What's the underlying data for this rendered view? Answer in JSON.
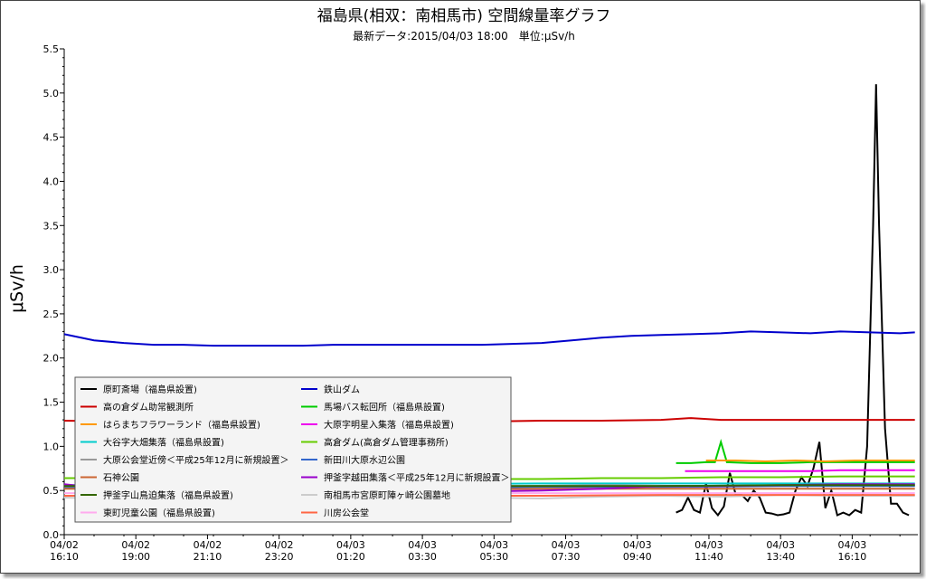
{
  "chart_data": {
    "type": "line",
    "title": "福島県(相双：南相馬市) 空間線量率グラフ",
    "subtitle": "最新データ:2015/04/03 18:00　単位:μSv/h",
    "ylabel": "μSv/h",
    "xlabel": "",
    "ylim": [
      0,
      5.5
    ],
    "yticks": [
      "0.0",
      "0.5",
      "1.0",
      "1.5",
      "2.0",
      "2.5",
      "3.0",
      "3.5",
      "4.0",
      "4.5",
      "5.0",
      "5.5"
    ],
    "xticks": [
      {
        "date": "04/02",
        "time": "16:10"
      },
      {
        "date": "04/02",
        "time": "19:00"
      },
      {
        "date": "04/02",
        "time": "21:10"
      },
      {
        "date": "04/02",
        "time": "23:20"
      },
      {
        "date": "04/03",
        "time": "01:20"
      },
      {
        "date": "04/03",
        "time": "03:30"
      },
      {
        "date": "04/03",
        "time": "05:30"
      },
      {
        "date": "04/03",
        "time": "07:30"
      },
      {
        "date": "04/03",
        "time": "09:40"
      },
      {
        "date": "04/03",
        "time": "11:40"
      },
      {
        "date": "04/03",
        "time": "13:40"
      },
      {
        "date": "04/03",
        "time": "16:10"
      }
    ],
    "grid": false,
    "legend_position": "bottom-left",
    "series": [
      {
        "name": "原町斎場（福島県設置)",
        "color": "#000000",
        "values": [
          [
            20.5,
            0.25
          ],
          [
            20.7,
            0.28
          ],
          [
            20.9,
            0.42
          ],
          [
            21.1,
            0.28
          ],
          [
            21.3,
            0.25
          ],
          [
            21.5,
            0.58
          ],
          [
            21.7,
            0.3
          ],
          [
            21.9,
            0.22
          ],
          [
            22.1,
            0.32
          ],
          [
            22.3,
            0.7
          ],
          [
            22.5,
            0.45
          ],
          [
            22.7,
            0.45
          ],
          [
            22.9,
            0.38
          ],
          [
            23.1,
            0.5
          ],
          [
            23.3,
            0.42
          ],
          [
            23.5,
            0.25
          ],
          [
            23.7,
            0.24
          ],
          [
            23.9,
            0.22
          ],
          [
            24.1,
            0.23
          ],
          [
            24.3,
            0.25
          ],
          [
            24.5,
            0.5
          ],
          [
            24.7,
            0.65
          ],
          [
            24.9,
            0.55
          ],
          [
            25.1,
            0.75
          ],
          [
            25.3,
            1.05
          ],
          [
            25.5,
            0.3
          ],
          [
            25.7,
            0.5
          ],
          [
            25.9,
            0.22
          ],
          [
            26.1,
            0.25
          ],
          [
            26.3,
            0.22
          ],
          [
            26.5,
            0.28
          ],
          [
            26.7,
            0.25
          ],
          [
            26.9,
            1.0
          ],
          [
            27.1,
            3.5
          ],
          [
            27.2,
            5.1
          ],
          [
            27.3,
            3.5
          ],
          [
            27.5,
            1.2
          ],
          [
            27.7,
            0.35
          ],
          [
            27.9,
            0.35
          ],
          [
            28.1,
            0.25
          ],
          [
            28.3,
            0.22
          ]
        ]
      },
      {
        "name": "鉄山ダム",
        "color": "#0000cc",
        "values": [
          [
            0,
            2.27
          ],
          [
            1,
            2.2
          ],
          [
            2,
            2.17
          ],
          [
            3,
            2.15
          ],
          [
            4,
            2.15
          ],
          [
            5,
            2.14
          ],
          [
            6,
            2.14
          ],
          [
            7,
            2.14
          ],
          [
            8,
            2.14
          ],
          [
            9,
            2.15
          ],
          [
            10,
            2.15
          ],
          [
            11,
            2.15
          ],
          [
            12,
            2.15
          ],
          [
            13,
            2.15
          ],
          [
            14,
            2.15
          ],
          [
            15,
            2.16
          ],
          [
            16,
            2.17
          ],
          [
            17,
            2.2
          ],
          [
            18,
            2.23
          ],
          [
            19,
            2.25
          ],
          [
            20,
            2.26
          ],
          [
            21,
            2.27
          ],
          [
            22,
            2.28
          ],
          [
            23,
            2.3
          ],
          [
            24,
            2.29
          ],
          [
            25,
            2.28
          ],
          [
            26,
            2.3
          ],
          [
            27,
            2.29
          ],
          [
            28,
            2.28
          ],
          [
            28.5,
            2.29
          ]
        ]
      },
      {
        "name": "高の倉ダム助常観測所",
        "color": "#cc0000",
        "values": [
          [
            0,
            1.29
          ],
          [
            2,
            1.28
          ],
          [
            4,
            1.28
          ],
          [
            6,
            1.28
          ],
          [
            8,
            1.28
          ],
          [
            10,
            1.28
          ],
          [
            12,
            1.28
          ],
          [
            14,
            1.28
          ],
          [
            16,
            1.29
          ],
          [
            18,
            1.29
          ],
          [
            20,
            1.3
          ],
          [
            21,
            1.32
          ],
          [
            22,
            1.3
          ],
          [
            24,
            1.3
          ],
          [
            26,
            1.3
          ],
          [
            28,
            1.3
          ],
          [
            28.5,
            1.3
          ]
        ]
      },
      {
        "name": "馬場バス転回所（福島県設置)",
        "color": "#00cc00",
        "values": [
          [
            20.5,
            0.81
          ],
          [
            21,
            0.81
          ],
          [
            21.5,
            0.82
          ],
          [
            21.8,
            0.82
          ],
          [
            22,
            1.05
          ],
          [
            22.2,
            0.82
          ],
          [
            23,
            0.81
          ],
          [
            24,
            0.81
          ],
          [
            25,
            0.82
          ],
          [
            26,
            0.82
          ],
          [
            27,
            0.82
          ],
          [
            28,
            0.82
          ],
          [
            28.5,
            0.82
          ]
        ]
      },
      {
        "name": "はらまちフラワーランド（福島県設置)",
        "color": "#ff9900",
        "values": [
          [
            21.5,
            0.84
          ],
          [
            22.5,
            0.84
          ],
          [
            23.5,
            0.83
          ],
          [
            24.5,
            0.84
          ],
          [
            25.5,
            0.83
          ],
          [
            26.5,
            0.84
          ],
          [
            27.5,
            0.84
          ],
          [
            28.5,
            0.84
          ]
        ]
      },
      {
        "name": "大原字明星入集落（福島県設置)",
        "color": "#ee00ee",
        "values": [
          [
            20.8,
            0.72
          ],
          [
            22,
            0.72
          ],
          [
            23,
            0.72
          ],
          [
            24,
            0.72
          ],
          [
            25,
            0.72
          ],
          [
            26,
            0.73
          ],
          [
            27,
            0.73
          ],
          [
            28,
            0.73
          ],
          [
            28.5,
            0.73
          ]
        ]
      },
      {
        "name": "大谷字大畑集落（福島県設置)",
        "color": "#00cccc",
        "values": [
          [
            0,
            0.56
          ],
          [
            4,
            0.56
          ],
          [
            8,
            0.57
          ],
          [
            12,
            0.57
          ],
          [
            16,
            0.58
          ],
          [
            20,
            0.58
          ],
          [
            24,
            0.58
          ],
          [
            28.5,
            0.58
          ]
        ]
      },
      {
        "name": "高倉ダム(高倉ダム管理事務所)",
        "color": "#66cc00",
        "values": [
          [
            0,
            0.64
          ],
          [
            2,
            0.64
          ],
          [
            4,
            0.63
          ],
          [
            6,
            0.63
          ],
          [
            8,
            0.63
          ],
          [
            10,
            0.63
          ],
          [
            12,
            0.63
          ],
          [
            14,
            0.63
          ],
          [
            16,
            0.63
          ],
          [
            18,
            0.64
          ],
          [
            20,
            0.64
          ],
          [
            22,
            0.65
          ],
          [
            24,
            0.65
          ],
          [
            26,
            0.66
          ],
          [
            28,
            0.66
          ],
          [
            28.5,
            0.66
          ]
        ]
      },
      {
        "name": "大原公会堂近傍＜平成25年12月に新規設置＞",
        "color": "#999999",
        "values": [
          [
            0,
            0.55
          ],
          [
            3,
            0.56
          ],
          [
            6,
            0.55
          ],
          [
            9,
            0.55
          ],
          [
            12,
            0.56
          ],
          [
            15,
            0.55
          ],
          [
            18,
            0.56
          ],
          [
            21,
            0.55
          ],
          [
            24,
            0.56
          ],
          [
            27,
            0.56
          ],
          [
            28.5,
            0.56
          ]
        ]
      },
      {
        "name": "新田川大原水辺公園",
        "color": "#3366cc",
        "values": [
          [
            0,
            0.53
          ],
          [
            4,
            0.53
          ],
          [
            8,
            0.54
          ],
          [
            12,
            0.53
          ],
          [
            16,
            0.54
          ],
          [
            20,
            0.54
          ],
          [
            24,
            0.55
          ],
          [
            28.5,
            0.55
          ]
        ]
      },
      {
        "name": "石神公園",
        "color": "#cc6633",
        "values": [
          [
            0,
            0.52
          ],
          [
            4,
            0.51
          ],
          [
            8,
            0.51
          ],
          [
            12,
            0.51
          ],
          [
            16,
            0.52
          ],
          [
            20,
            0.52
          ],
          [
            24,
            0.52
          ],
          [
            28.5,
            0.52
          ]
        ]
      },
      {
        "name": "押釜字越田集落＜平成25年12月に新規設置＞",
        "color": "#9900cc",
        "values": [
          [
            0,
            0.57
          ],
          [
            2,
            0.5
          ],
          [
            4,
            0.53
          ],
          [
            6,
            0.5
          ],
          [
            8,
            0.52
          ],
          [
            10,
            0.49
          ],
          [
            12,
            0.5
          ],
          [
            14,
            0.49
          ],
          [
            16,
            0.5
          ],
          [
            18,
            0.52
          ],
          [
            20,
            0.55
          ],
          [
            22,
            0.55
          ],
          [
            24,
            0.56
          ],
          [
            26,
            0.57
          ],
          [
            28,
            0.57
          ],
          [
            28.5,
            0.57
          ]
        ]
      },
      {
        "name": "押釜字山鳥迫集落（福島県設置)",
        "color": "#336600",
        "values": [
          [
            0,
            0.55
          ],
          [
            4,
            0.55
          ],
          [
            8,
            0.54
          ],
          [
            12,
            0.55
          ],
          [
            16,
            0.55
          ],
          [
            20,
            0.55
          ],
          [
            24,
            0.56
          ],
          [
            28.5,
            0.56
          ]
        ]
      },
      {
        "name": "南相馬市宮原町陣ヶ崎公園墓地",
        "color": "#cccccc",
        "values": [
          [
            0,
            0.42
          ],
          [
            2,
            0.4
          ],
          [
            4,
            0.43
          ],
          [
            6,
            0.42
          ],
          [
            8,
            0.44
          ],
          [
            10,
            0.41
          ],
          [
            12,
            0.43
          ],
          [
            14,
            0.42
          ],
          [
            16,
            0.41
          ],
          [
            18,
            0.43
          ],
          [
            20,
            0.44
          ],
          [
            22,
            0.43
          ],
          [
            24,
            0.45
          ],
          [
            26,
            0.44
          ],
          [
            28,
            0.44
          ],
          [
            28.5,
            0.44
          ]
        ]
      },
      {
        "name": "東町児童公園（福島県設置)",
        "color": "#ffaaee",
        "values": [
          [
            0,
            0.47
          ],
          [
            4,
            0.47
          ],
          [
            8,
            0.47
          ],
          [
            12,
            0.47
          ],
          [
            16,
            0.47
          ],
          [
            20,
            0.47
          ],
          [
            24,
            0.47
          ],
          [
            28.5,
            0.47
          ]
        ]
      },
      {
        "name": "川房公会堂",
        "color": "#ff6644",
        "values": [
          [
            0,
            0.44
          ],
          [
            4,
            0.44
          ],
          [
            8,
            0.44
          ],
          [
            12,
            0.44
          ],
          [
            16,
            0.44
          ],
          [
            20,
            0.45
          ],
          [
            24,
            0.45
          ],
          [
            28.5,
            0.45
          ]
        ]
      }
    ]
  }
}
